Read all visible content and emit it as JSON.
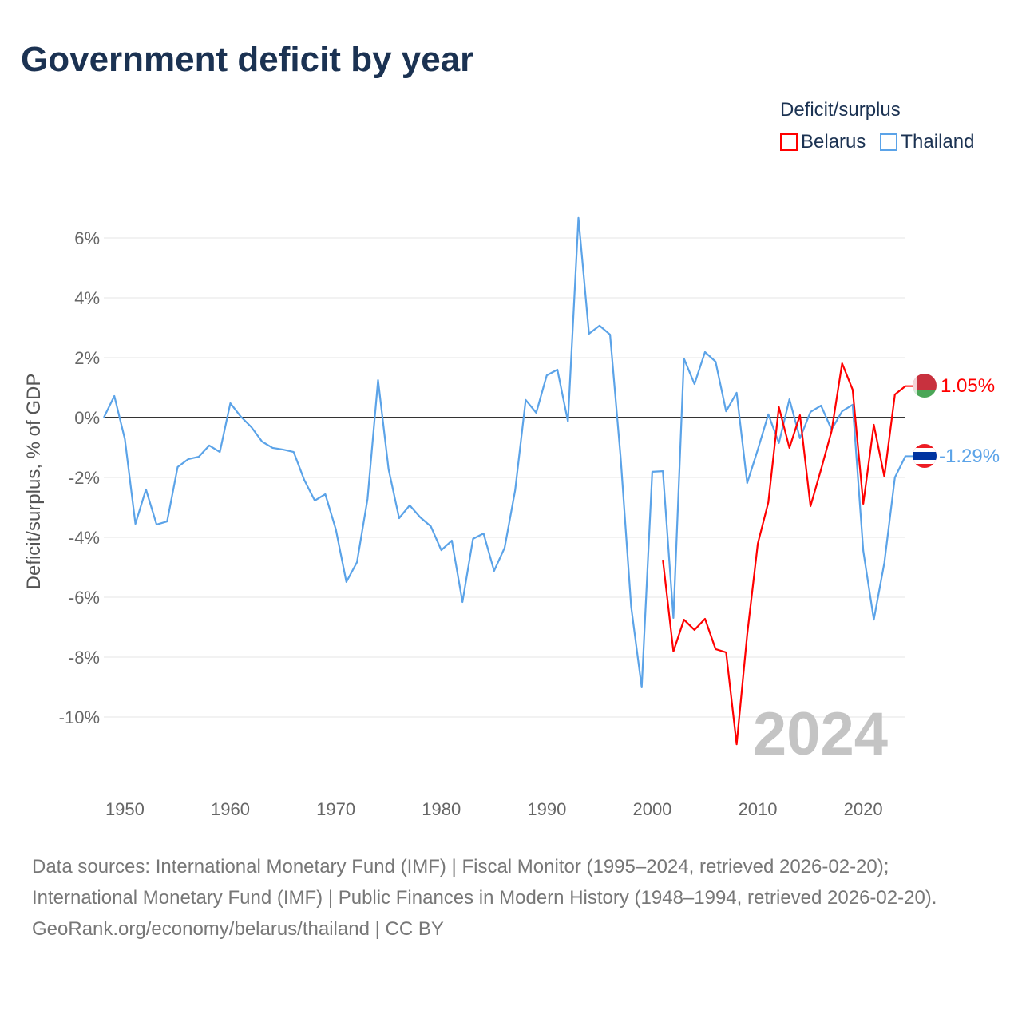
{
  "title": "Government deficit by year",
  "legend": {
    "title": "Deficit/surplus",
    "items": [
      {
        "label": "Belarus",
        "color": "#ff0000"
      },
      {
        "label": "Thailand",
        "color": "#5ba3e8"
      }
    ]
  },
  "footer": {
    "sources": "Data sources: International Monetary Fund (IMF) | Fiscal Monitor (1995–2024, retrieved 2026-02-20); International Monetary Fund (IMF) | Public Finances in Modern History (1948–1994, retrieved 2026-02-20).",
    "credit": "GeoRank.org/economy/belarus/thailand | CC BY"
  },
  "chart_data": {
    "type": "line",
    "ylabel": "Deficit/surplus, % of GDP",
    "xlabel": "",
    "xlim": [
      1948,
      2024
    ],
    "ylim": [
      -11.5,
      7
    ],
    "x_ticks": [
      1950,
      1960,
      1970,
      1980,
      1990,
      2000,
      2010,
      2020
    ],
    "x_tick_labels": [
      "1950",
      "1960",
      "1970",
      "1980",
      "1990",
      "2000",
      "2010",
      "2020"
    ],
    "y_ticks": [
      6,
      4,
      2,
      0,
      -2,
      -4,
      -6,
      -8,
      -10
    ],
    "y_tick_labels": [
      "6%",
      "4%",
      "2%",
      "0%",
      "-2%",
      "-4%",
      "-6%",
      "-8%",
      "-10%"
    ],
    "grid": true,
    "year_watermark": "2024",
    "series": [
      {
        "name": "Thailand",
        "color": "#5ba3e8",
        "end_label": "-1.29%",
        "start_year": 1948,
        "values": [
          0.0,
          0.72,
          -0.72,
          -3.55,
          -2.4,
          -3.57,
          -3.47,
          -1.65,
          -1.39,
          -1.31,
          -0.93,
          -1.15,
          0.48,
          0.03,
          -0.32,
          -0.8,
          -1.01,
          -1.07,
          -1.15,
          -2.08,
          -2.77,
          -2.56,
          -3.73,
          -5.49,
          -4.83,
          -2.72,
          1.25,
          -1.73,
          -3.36,
          -2.93,
          -3.33,
          -3.63,
          -4.43,
          -4.11,
          -6.16,
          -4.05,
          -3.87,
          -5.12,
          -4.35,
          -2.43,
          0.59,
          0.16,
          1.41,
          1.6,
          -0.13,
          6.67,
          2.8,
          3.07,
          2.77,
          -1.33,
          -6.32,
          -9.01,
          -1.81,
          -1.79,
          -6.69,
          1.97,
          1.12,
          2.19,
          1.87,
          0.21,
          0.83,
          -2.19,
          -1.07,
          0.11,
          -0.85,
          0.61,
          -0.69,
          0.19,
          0.4,
          -0.4,
          0.21,
          0.43,
          -4.45,
          -6.75,
          -4.85,
          -2.0,
          -1.29
        ]
      },
      {
        "name": "Belarus",
        "color": "#ff0000",
        "end_label": "1.05%",
        "start_year": 2001,
        "values": [
          -4.75,
          -7.81,
          -6.75,
          -7.09,
          -6.72,
          -7.73,
          -7.84,
          -10.91,
          -7.25,
          -4.21,
          -2.83,
          0.35,
          -1.01,
          0.08,
          -2.96,
          -1.73,
          -0.45,
          1.81,
          0.93,
          -2.88,
          -0.24,
          -1.97,
          0.77,
          1.05
        ]
      }
    ]
  }
}
